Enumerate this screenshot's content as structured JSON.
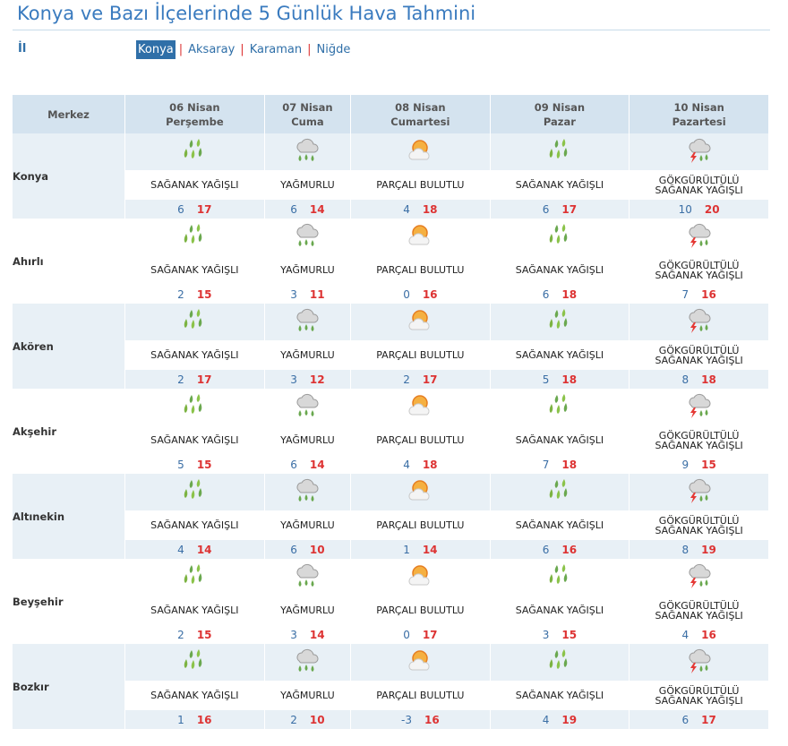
{
  "page": {
    "title": "Konya ve Bazı İlçelerinde 5 Günlük Hava Tahmini",
    "il_label": "İl"
  },
  "cities": [
    "Konya",
    "Aksaray",
    "Karaman",
    "Niğde"
  ],
  "active_city": "Konya",
  "header": {
    "merkez": "Merkez",
    "days": [
      {
        "date": "06 Nisan",
        "day": "Perşembe"
      },
      {
        "date": "07 Nisan",
        "day": "Cuma"
      },
      {
        "date": "08 Nisan",
        "day": "Cumartesi"
      },
      {
        "date": "09 Nisan",
        "day": "Pazar"
      },
      {
        "date": "10 Nisan",
        "day": "Pazartesi"
      }
    ]
  },
  "conditions": {
    "shower": "SAĞANAK YAĞIŞLI",
    "rain": "YAĞMURLU",
    "partly": "PARÇALI BULUTLU",
    "thunder_1": "GÖKGÜRÜLTÜLÜ",
    "thunder_2": "SAĞANAK YAĞIŞLI"
  },
  "icons": {
    "shower": "heavy-rain-icon",
    "rain": "rain-cloud-icon",
    "partly": "partly-cloudy-sun-icon",
    "thunder": "thunderstorm-icon"
  },
  "colors": {
    "accent": "#2f6fa8",
    "max_temp": "#dd3333",
    "min_temp": "#3a6ea5",
    "header_bg": "#d4e3ef"
  },
  "rows": [
    {
      "name": "Konya",
      "temps": [
        [
          6,
          17
        ],
        [
          6,
          14
        ],
        [
          4,
          18
        ],
        [
          6,
          17
        ],
        [
          10,
          20
        ]
      ]
    },
    {
      "name": "Ahırlı",
      "temps": [
        [
          2,
          15
        ],
        [
          3,
          11
        ],
        [
          0,
          16
        ],
        [
          6,
          18
        ],
        [
          7,
          16
        ]
      ]
    },
    {
      "name": "Akören",
      "temps": [
        [
          2,
          17
        ],
        [
          3,
          12
        ],
        [
          2,
          17
        ],
        [
          5,
          18
        ],
        [
          8,
          18
        ]
      ]
    },
    {
      "name": "Akşehir",
      "temps": [
        [
          5,
          15
        ],
        [
          6,
          14
        ],
        [
          4,
          18
        ],
        [
          7,
          18
        ],
        [
          9,
          15
        ]
      ]
    },
    {
      "name": "Altınekin",
      "temps": [
        [
          4,
          14
        ],
        [
          6,
          10
        ],
        [
          1,
          14
        ],
        [
          6,
          16
        ],
        [
          8,
          19
        ]
      ]
    },
    {
      "name": "Beyşehir",
      "temps": [
        [
          2,
          15
        ],
        [
          3,
          14
        ],
        [
          0,
          17
        ],
        [
          3,
          15
        ],
        [
          4,
          16
        ]
      ]
    },
    {
      "name": "Bozkır",
      "temps": [
        [
          1,
          16
        ],
        [
          2,
          10
        ],
        [
          -3,
          16
        ],
        [
          4,
          19
        ],
        [
          6,
          17
        ]
      ]
    }
  ],
  "day_conditions": [
    "shower",
    "rain",
    "partly",
    "shower",
    "thunder"
  ]
}
